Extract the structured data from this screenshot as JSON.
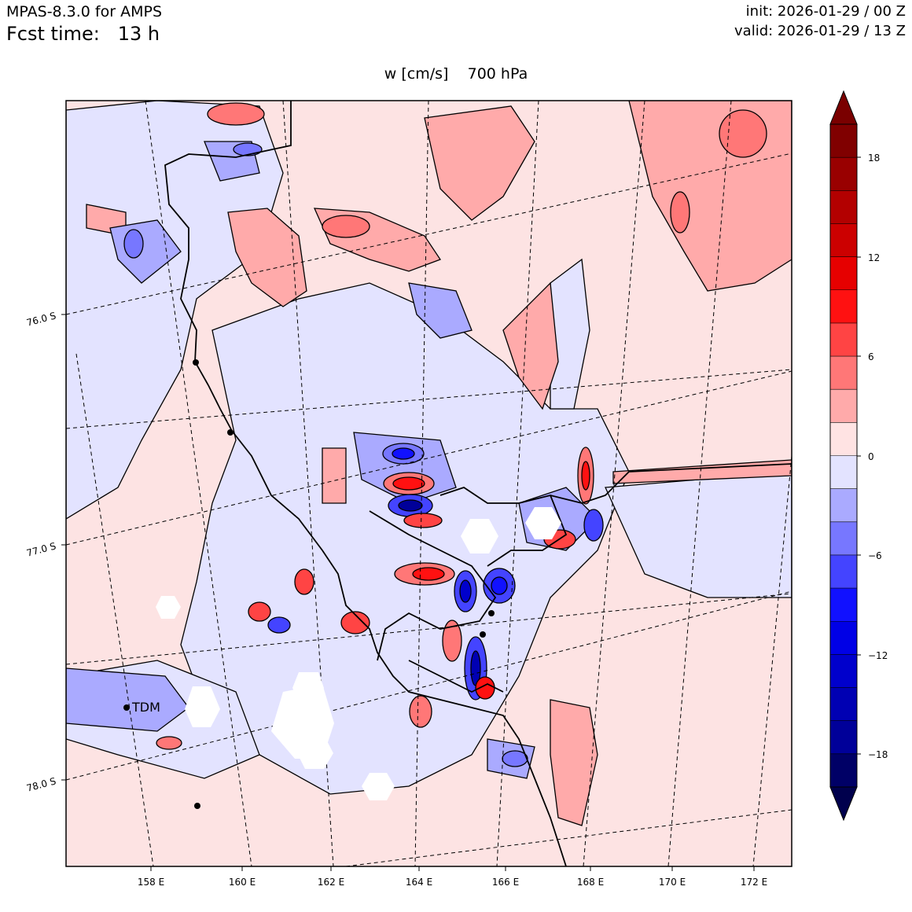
{
  "header": {
    "model": "MPAS-8.3.0 for AMPS",
    "fcst_label": "Fcst time:",
    "fcst_value": "13 h",
    "init": "init: 2026-01-29 / 00 Z",
    "valid": "valid: 2026-01-29 / 13 Z"
  },
  "field": {
    "variable": "w [cm/s]",
    "level": "700 hPa"
  },
  "map": {
    "lon_labels": [
      "158 E",
      "160 E",
      "162 E",
      "164 E",
      "166 E",
      "168 E",
      "170 E",
      "172 E"
    ],
    "lat_labels": [
      "76.0 S",
      "77.0 S",
      "78.0 S"
    ],
    "station_label": "TDM"
  },
  "colorbar": {
    "ticks": [
      "18",
      "12",
      "6",
      "0",
      "−6",
      "−12",
      "−18"
    ],
    "colors": [
      "#800000",
      "#990000",
      "#b30000",
      "#cc0000",
      "#e60000",
      "#ff1111",
      "#ff4444",
      "#ff7777",
      "#ffaaaa",
      "#ffe3e3",
      "#e3e3ff",
      "#aaaaff",
      "#7777ff",
      "#4444ff",
      "#1111ff",
      "#0000e6",
      "#0000cc",
      "#0000b3",
      "#000099",
      "#000066"
    ],
    "over_color": "#7a0000",
    "under_color": "#00004d"
  }
}
